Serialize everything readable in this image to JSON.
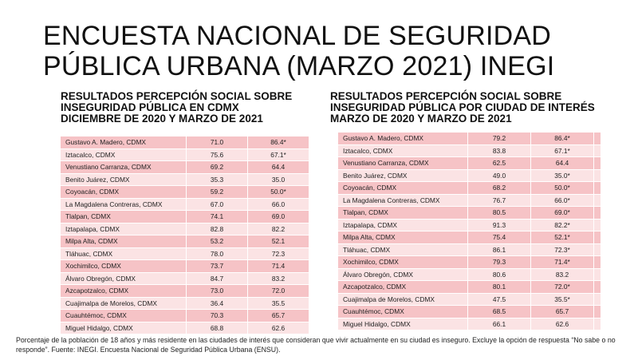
{
  "title": "ENCUESTA NACIONAL DE SEGURIDAD PÚBLICA URBANA (MARZO 2021) INEGI",
  "left_panel": {
    "heading": "RESULTADOS PERCEPCIÓN SOCIAL SOBRE INSEGURIDAD PÚBLICA EN CDMX DICIEMBRE DE 2020 Y MARZO DE 2021",
    "rows": [
      {
        "name": "Gustavo A. Madero, CDMX",
        "v1": "71.0",
        "v2": "86.4*"
      },
      {
        "name": "Iztacalco, CDMX",
        "v1": "75.6",
        "v2": "67.1*"
      },
      {
        "name": "Venustiano Carranza, CDMX",
        "v1": "69.2",
        "v2": "64.4"
      },
      {
        "name": "Benito Juárez, CDMX",
        "v1": "35.3",
        "v2": "35.0"
      },
      {
        "name": "Coyoacán, CDMX",
        "v1": "59.2",
        "v2": "50.0*"
      },
      {
        "name": "La Magdalena Contreras, CDMX",
        "v1": "67.0",
        "v2": "66.0"
      },
      {
        "name": "Tlalpan, CDMX",
        "v1": "74.1",
        "v2": "69.0"
      },
      {
        "name": "Iztapalapa, CDMX",
        "v1": "82.8",
        "v2": "82.2"
      },
      {
        "name": "Milpa Alta, CDMX",
        "v1": "53.2",
        "v2": "52.1"
      },
      {
        "name": "Tláhuac, CDMX",
        "v1": "78.0",
        "v2": "72.3"
      },
      {
        "name": "Xochimilco, CDMX",
        "v1": "73.7",
        "v2": "71.4"
      },
      {
        "name": "Álvaro Obregón, CDMX",
        "v1": "84.7",
        "v2": "83.2"
      },
      {
        "name": "Azcapotzalco, CDMX",
        "v1": "73.0",
        "v2": "72.0"
      },
      {
        "name": "Cuajimalpa de Morelos, CDMX",
        "v1": "36.4",
        "v2": "35.5"
      },
      {
        "name": "Cuauhtémoc, CDMX",
        "v1": "70.3",
        "v2": "65.7"
      },
      {
        "name": "Miguel Hidalgo, CDMX",
        "v1": "68.8",
        "v2": "62.6"
      }
    ]
  },
  "right_panel": {
    "heading": "RESULTADOS PERCEPCIÓN SOCIAL SOBRE INSEGURIDAD PÚBLICA POR CIUDAD DE INTERÉS MARZO DE 2020 Y MARZO DE 2021",
    "rows": [
      {
        "name": "Gustavo A. Madero, CDMX",
        "v1": "79.2",
        "v2": "86.4*"
      },
      {
        "name": "Iztacalco, CDMX",
        "v1": "83.8",
        "v2": "67.1*"
      },
      {
        "name": "Venustiano Carranza, CDMX",
        "v1": "62.5",
        "v2": "64.4"
      },
      {
        "name": "Benito Juárez, CDMX",
        "v1": "49.0",
        "v2": "35.0*"
      },
      {
        "name": "Coyoacán, CDMX",
        "v1": "68.2",
        "v2": "50.0*"
      },
      {
        "name": "La Magdalena Contreras, CDMX",
        "v1": "76.7",
        "v2": "66.0*"
      },
      {
        "name": "Tlalpan, CDMX",
        "v1": "80.5",
        "v2": "69.0*"
      },
      {
        "name": "Iztapalapa, CDMX",
        "v1": "91.3",
        "v2": "82.2*"
      },
      {
        "name": "Milpa Alta, CDMX",
        "v1": "75.4",
        "v2": "52.1*"
      },
      {
        "name": "Tláhuac, CDMX",
        "v1": "86.1",
        "v2": "72.3*"
      },
      {
        "name": "Xochimilco, CDMX",
        "v1": "79.3",
        "v2": "71.4*"
      },
      {
        "name": "Álvaro Obregón, CDMX",
        "v1": "80.6",
        "v2": "83.2"
      },
      {
        "name": "Azcapotzalco, CDMX",
        "v1": "80.1",
        "v2": "72.0*"
      },
      {
        "name": "Cuajimalpa de Morelos, CDMX",
        "v1": "47.5",
        "v2": "35.5*"
      },
      {
        "name": "Cuauhtémoc, CDMX",
        "v1": "68.5",
        "v2": "65.7"
      },
      {
        "name": "Miguel Hidalgo, CDMX",
        "v1": "66.1",
        "v2": "62.6"
      }
    ]
  },
  "footnote": "Porcentaje de la población de 18 años y más residente en las ciudades de interés que consideran que vivir actualmente en su ciudad es inseguro. Excluye la opción de respuesta “No sabe o no responde”. Fuente: INEGI. Encuesta Nacional de Seguridad Pública Urbana (ENSU).",
  "colors": {
    "row_dark": "#f6c3c6",
    "row_light": "#fbe3e4"
  }
}
